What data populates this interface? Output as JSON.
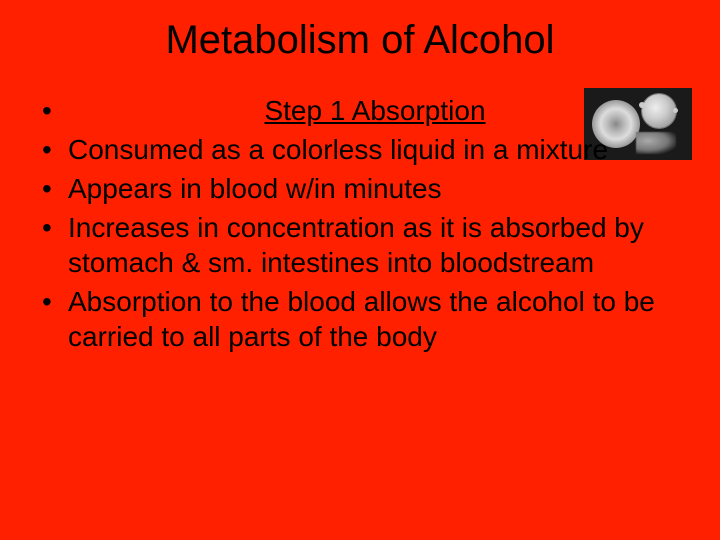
{
  "background_color": "#ff2000",
  "text_color": "#000000",
  "title": "Metabolism of Alcohol",
  "title_fontsize": 40,
  "body_fontsize": 28,
  "step_heading": "Step 1 Absorption",
  "bullets": [
    "Consumed as a colorless liquid in a mixture",
    "Appears in blood w/in minutes",
    "Increases in concentration as it is absorbed by stomach & sm. intestines into bloodstream",
    "Absorption to the blood allows the alcohol to be carried to all parts of the body"
  ],
  "image": {
    "alt": "blood-cells-micrograph",
    "bg": "#1a1a1a"
  }
}
